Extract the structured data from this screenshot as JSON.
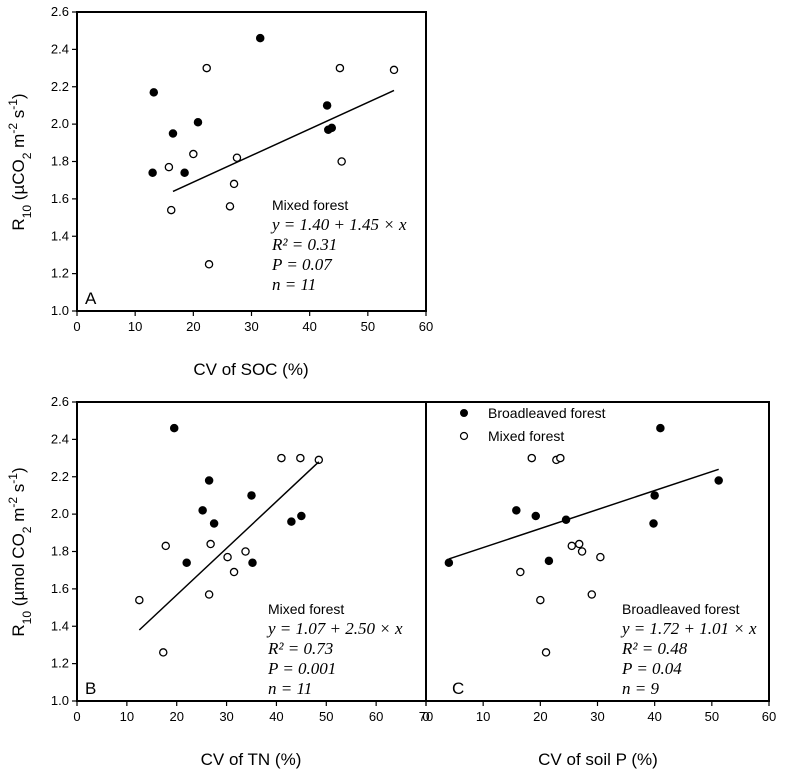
{
  "chart_data": [
    {
      "id": "A",
      "type": "scatter",
      "panel_label": "A",
      "xlabel": "CV of SOC (%)",
      "ylabel": "R10 (µCO2 m-2 s-1)",
      "ylabel_parts": {
        "main": "R",
        "sub1": "10",
        "unit_open": " (µCO",
        "sub2": "2",
        "unit_mid": " m",
        "sup1": "-2",
        "unit_s": " s",
        "sup2": "-1",
        "unit_close": ")"
      },
      "xlim": [
        0,
        60
      ],
      "ylim": [
        1.0,
        2.6
      ],
      "xticks": [
        "0",
        "10",
        "20",
        "30",
        "40",
        "50",
        "60"
      ],
      "yticks": [
        "1.0",
        "1.2",
        "1.4",
        "1.6",
        "1.8",
        "2.0",
        "2.2",
        "2.4",
        "2.6"
      ],
      "series": [
        {
          "name": "Broadleaved forest",
          "marker": "filled",
          "points": [
            [
              13.2,
              2.17
            ],
            [
              16.5,
              1.95
            ],
            [
              13.0,
              1.74
            ],
            [
              18.5,
              1.74
            ],
            [
              20.8,
              2.01
            ],
            [
              31.5,
              2.46
            ],
            [
              43.0,
              2.1
            ],
            [
              43.2,
              1.97
            ],
            [
              43.8,
              1.98
            ]
          ]
        },
        {
          "name": "Mixed forest",
          "marker": "open",
          "points": [
            [
              22.3,
              2.3
            ],
            [
              45.2,
              2.3
            ],
            [
              54.5,
              2.29
            ],
            [
              20.0,
              1.84
            ],
            [
              27.5,
              1.82
            ],
            [
              15.8,
              1.77
            ],
            [
              45.5,
              1.8
            ],
            [
              27.0,
              1.68
            ],
            [
              16.2,
              1.54
            ],
            [
              26.3,
              1.56
            ],
            [
              22.7,
              1.25
            ]
          ]
        }
      ],
      "fit_line": {
        "x": [
          16.5,
          54.5
        ],
        "y": [
          1.64,
          2.18
        ]
      },
      "annotation": {
        "title": "Mixed forest",
        "equation": "y = 1.40 + 1.45 × x",
        "r2": "R² = 0.31",
        "p": "P = 0.07",
        "n": "n = 11"
      }
    },
    {
      "id": "B",
      "type": "scatter",
      "panel_label": "B",
      "xlabel": "CV of TN (%)",
      "ylabel": "R10 (µmol CO2 m-2 s-1)",
      "ylabel_parts": {
        "main": "R",
        "sub1": "10",
        "unit_open": " (µmol CO",
        "sub2": "2",
        "unit_mid": " m",
        "sup1": "-2",
        "unit_s": " s",
        "sup2": "-1",
        "unit_close": ")"
      },
      "xlim": [
        0,
        70
      ],
      "ylim": [
        1.0,
        2.6
      ],
      "xticks": [
        "0",
        "10",
        "20",
        "30",
        "40",
        "50",
        "60",
        "70"
      ],
      "yticks": [
        "1.0",
        "1.2",
        "1.4",
        "1.6",
        "1.8",
        "2.0",
        "2.2",
        "2.4",
        "2.6"
      ],
      "series": [
        {
          "name": "Broadleaved forest",
          "marker": "filled",
          "points": [
            [
              19.5,
              2.46
            ],
            [
              26.5,
              2.18
            ],
            [
              25.2,
              2.02
            ],
            [
              35.0,
              2.1
            ],
            [
              27.5,
              1.95
            ],
            [
              43.0,
              1.96
            ],
            [
              45.0,
              1.99
            ],
            [
              22.0,
              1.74
            ],
            [
              35.2,
              1.74
            ]
          ]
        },
        {
          "name": "Mixed forest",
          "marker": "open",
          "points": [
            [
              41.0,
              2.3
            ],
            [
              44.8,
              2.3
            ],
            [
              48.5,
              2.29
            ],
            [
              26.8,
              1.84
            ],
            [
              17.8,
              1.83
            ],
            [
              30.2,
              1.77
            ],
            [
              33.8,
              1.8
            ],
            [
              31.5,
              1.69
            ],
            [
              26.5,
              1.57
            ],
            [
              12.5,
              1.54
            ],
            [
              17.3,
              1.26
            ]
          ]
        }
      ],
      "fit_line": {
        "x": [
          12.5,
          48.5
        ],
        "y": [
          1.38,
          2.28
        ]
      },
      "annotation": {
        "title": "Mixed forest",
        "equation": "y = 1.07 + 2.50 × x",
        "r2": "R² = 0.73",
        "p": "P = 0.001",
        "n": "n = 11"
      }
    },
    {
      "id": "C",
      "type": "scatter",
      "panel_label": "C",
      "xlabel": "CV of soil P (%)",
      "xlim": [
        0,
        60
      ],
      "ylim": [
        1.0,
        2.6
      ],
      "xticks": [
        "0",
        "10",
        "20",
        "30",
        "40",
        "50",
        "60"
      ],
      "legend": {
        "position": "top-left",
        "entries": [
          "Broadleaved forest",
          "Mixed forest"
        ]
      },
      "series": [
        {
          "name": "Broadleaved forest",
          "marker": "filled",
          "points": [
            [
              41.0,
              2.46
            ],
            [
              51.2,
              2.18
            ],
            [
              40.0,
              2.1
            ],
            [
              15.8,
              2.02
            ],
            [
              19.2,
              1.99
            ],
            [
              24.5,
              1.97
            ],
            [
              39.8,
              1.95
            ],
            [
              21.5,
              1.75
            ],
            [
              4.0,
              1.74
            ]
          ]
        },
        {
          "name": "Mixed forest",
          "marker": "open",
          "points": [
            [
              18.5,
              2.3
            ],
            [
              22.8,
              2.29
            ],
            [
              23.5,
              2.3
            ],
            [
              26.8,
              1.84
            ],
            [
              25.5,
              1.83
            ],
            [
              27.3,
              1.8
            ],
            [
              30.5,
              1.77
            ],
            [
              16.5,
              1.69
            ],
            [
              20.0,
              1.54
            ],
            [
              29.0,
              1.57
            ],
            [
              21.0,
              1.26
            ]
          ]
        }
      ],
      "fit_line": {
        "x": [
          4.0,
          51.2
        ],
        "y": [
          1.76,
          2.24
        ]
      },
      "annotation": {
        "title": "Broadleaved forest",
        "equation": "y = 1.72 + 1.01 × x",
        "r2": "R² = 0.48",
        "p": "P = 0.04",
        "n": "n = 9"
      }
    }
  ]
}
